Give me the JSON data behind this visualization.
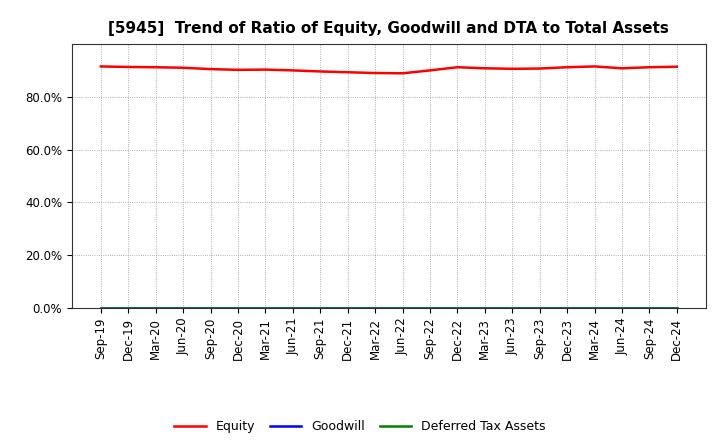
{
  "title": "[5945]  Trend of Ratio of Equity, Goodwill and DTA to Total Assets",
  "x_labels": [
    "Sep-19",
    "Dec-19",
    "Mar-20",
    "Jun-20",
    "Sep-20",
    "Dec-20",
    "Mar-21",
    "Jun-21",
    "Sep-21",
    "Dec-21",
    "Mar-22",
    "Jun-22",
    "Sep-22",
    "Dec-22",
    "Mar-23",
    "Jun-23",
    "Sep-23",
    "Dec-23",
    "Mar-24",
    "Jun-24",
    "Sep-24",
    "Dec-24"
  ],
  "equity": [
    0.915,
    0.913,
    0.912,
    0.91,
    0.905,
    0.902,
    0.903,
    0.9,
    0.896,
    0.893,
    0.89,
    0.889,
    0.9,
    0.912,
    0.908,
    0.906,
    0.907,
    0.912,
    0.915,
    0.908,
    0.912,
    0.914
  ],
  "goodwill": [
    0.0,
    0.0,
    0.0,
    0.0,
    0.0,
    0.0,
    0.0,
    0.0,
    0.0,
    0.0,
    0.0,
    0.0,
    0.0,
    0.0,
    0.0,
    0.0,
    0.0,
    0.0,
    0.0,
    0.0,
    0.0,
    0.0
  ],
  "dta": [
    0.0,
    0.0,
    0.0,
    0.0,
    0.0,
    0.0,
    0.0,
    0.0,
    0.0,
    0.0,
    0.0,
    0.0,
    0.0,
    0.0,
    0.0,
    0.0,
    0.0,
    0.0,
    0.0,
    0.0,
    0.0,
    0.0
  ],
  "equity_color": "#ff0000",
  "goodwill_color": "#0000ff",
  "dta_color": "#008000",
  "ylim": [
    0.0,
    1.0
  ],
  "yticks": [
    0.0,
    0.2,
    0.4,
    0.6,
    0.8
  ],
  "background_color": "#ffffff",
  "grid_color": "#999999",
  "legend_labels": [
    "Equity",
    "Goodwill",
    "Deferred Tax Assets"
  ],
  "title_fontsize": 11,
  "tick_fontsize": 8.5,
  "line_width": 1.8
}
